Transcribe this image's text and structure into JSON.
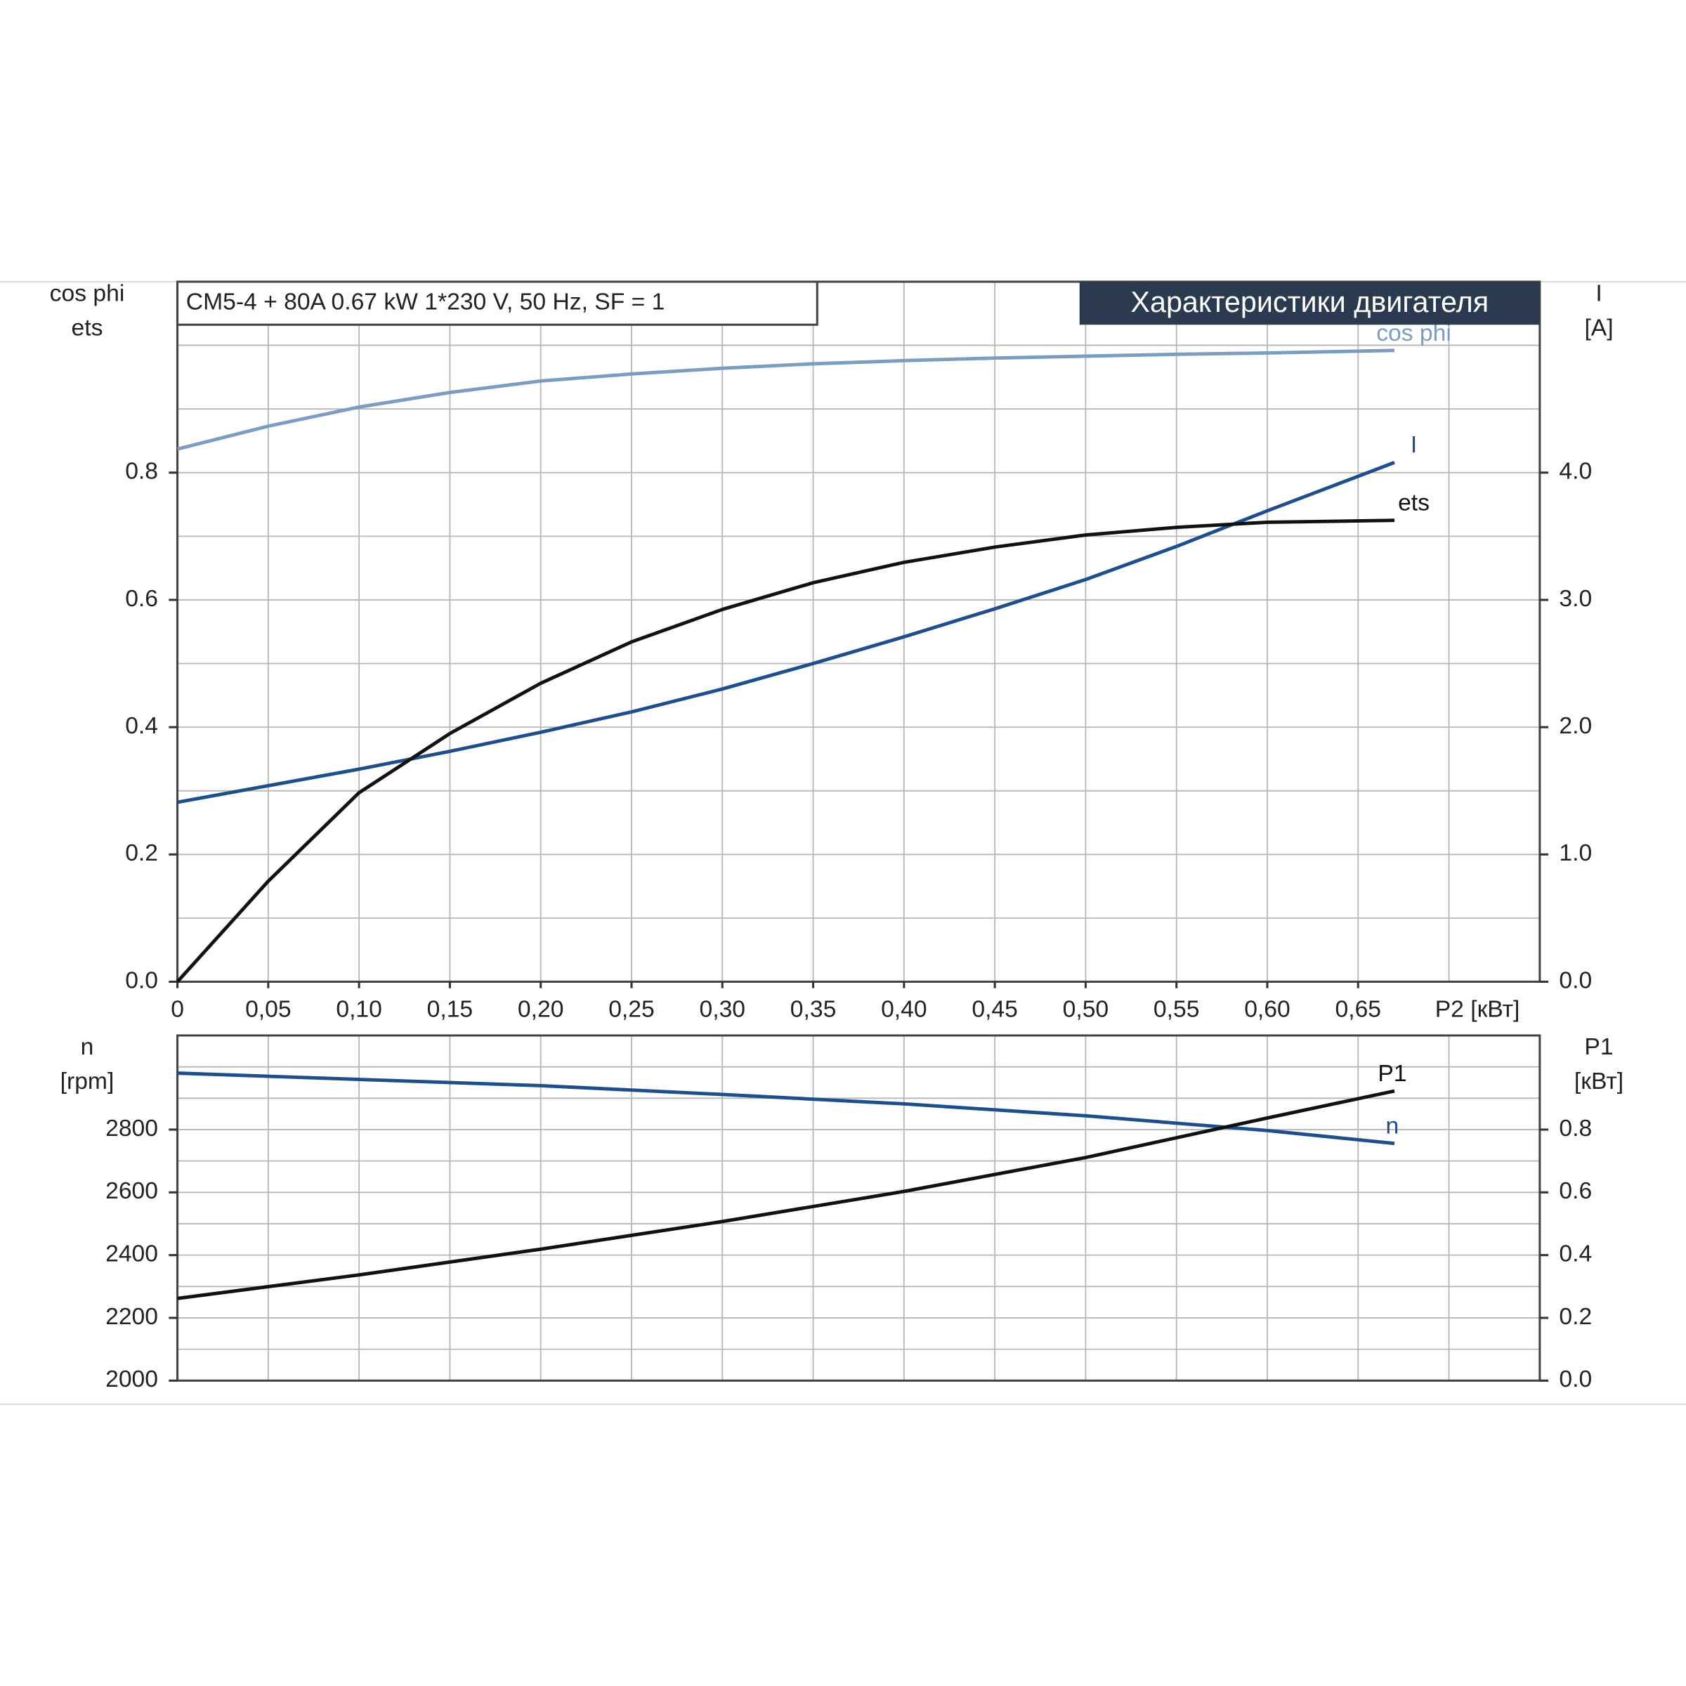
{
  "chart_data": [
    {
      "type": "line",
      "title": "Характеристики двигателя",
      "subtitle": "CM5-4 + 80A   0.67 kW   1*230 V, 50 Hz, SF = 1",
      "xlabel": "P2 [кВт]",
      "ylabel": [
        "cos phi",
        "ets"
      ],
      "y2label": [
        "I",
        "[A]"
      ],
      "xlim": [
        0,
        0.75
      ],
      "xticks": [
        0,
        {
          "value": 0.05,
          "label": "0,05"
        },
        {
          "value": 0.1,
          "label": "0,10"
        },
        {
          "value": 0.15,
          "label": "0,15"
        },
        {
          "value": 0.2,
          "label": "0,20"
        },
        {
          "value": 0.25,
          "label": "0,25"
        },
        {
          "value": 0.3,
          "label": "0,30"
        },
        {
          "value": 0.35,
          "label": "0,35"
        },
        {
          "value": 0.4,
          "label": "0,40"
        },
        {
          "value": 0.45,
          "label": "0,45"
        },
        {
          "value": 0.5,
          "label": "0,50"
        },
        {
          "value": 0.55,
          "label": "0,55"
        },
        {
          "value": 0.6,
          "label": "0,60"
        },
        {
          "value": 0.65,
          "label": "0,65"
        }
      ],
      "xgrid": [
        0.05,
        0.1,
        0.15,
        0.2,
        0.25,
        0.3,
        0.35,
        0.4,
        0.45,
        0.5,
        0.55,
        0.6,
        0.65,
        0.7
      ],
      "ylim": [
        0,
        1.1
      ],
      "yticks": [
        {
          "value": 0,
          "label": "0.0"
        },
        0.2,
        0.4,
        0.6,
        0.8
      ],
      "ygrid": [
        0.1,
        0.2,
        0.3,
        0.4,
        0.5,
        0.6,
        0.7,
        0.8,
        0.9,
        1.0
      ],
      "y2lim": [
        0,
        5.5
      ],
      "y2ticks": [
        {
          "value": 0,
          "label": "0.0"
        },
        {
          "value": 1,
          "label": "1.0"
        },
        {
          "value": 2,
          "label": "2.0"
        },
        {
          "value": 3,
          "label": "3.0"
        },
        {
          "value": 4,
          "label": "4.0"
        }
      ],
      "grid": true,
      "x": [
        0,
        0.05,
        0.1,
        0.15,
        0.2,
        0.25,
        0.3,
        0.35,
        0.4,
        0.45,
        0.5,
        0.55,
        0.6,
        0.67
      ],
      "series": [
        {
          "name": "cos phi",
          "color": "#7b9dc2",
          "values": [
            0.837,
            0.873,
            0.903,
            0.926,
            0.944,
            0.955,
            0.964,
            0.971,
            0.976,
            0.98,
            0.983,
            0.986,
            0.988,
            0.992
          ]
        },
        {
          "name": "I",
          "color": "#1f4e8c",
          "axis": "y2",
          "values": [
            1.41,
            1.54,
            1.67,
            1.81,
            1.96,
            2.12,
            2.3,
            2.5,
            2.71,
            2.93,
            3.16,
            3.42,
            3.7,
            4.08
          ]
        },
        {
          "name": "ets",
          "color": "#111111",
          "values": [
            0,
            0.158,
            0.297,
            0.39,
            0.469,
            0.534,
            0.585,
            0.627,
            0.659,
            0.683,
            0.702,
            0.714,
            0.722,
            0.725
          ]
        }
      ]
    },
    {
      "type": "line",
      "ylabel": [
        "n",
        "[rpm]"
      ],
      "y2label": [
        "P1",
        "[кВт]"
      ],
      "xlim": [
        0,
        0.75
      ],
      "xgrid": [
        0.05,
        0.1,
        0.15,
        0.2,
        0.25,
        0.3,
        0.35,
        0.4,
        0.45,
        0.5,
        0.55,
        0.6,
        0.65,
        0.7
      ],
      "ylim": [
        2000,
        3100
      ],
      "yticks": [
        2000,
        2200,
        2400,
        2600,
        2800
      ],
      "ygrid": [
        2100,
        2200,
        2300,
        2400,
        2500,
        2600,
        2700,
        2800,
        2900,
        3000
      ],
      "y2lim": [
        0,
        1.1
      ],
      "y2ticks": [
        {
          "value": 0,
          "label": "0.0"
        },
        0.2,
        0.4,
        0.6,
        0.8
      ],
      "grid": true,
      "x": [
        0,
        0.1,
        0.2,
        0.3,
        0.4,
        0.5,
        0.6,
        0.67
      ],
      "series": [
        {
          "name": "n",
          "color": "#1f4e8c",
          "values": [
            2980,
            2960,
            2940,
            2912,
            2882,
            2844,
            2797,
            2756
          ]
        },
        {
          "name": "P1",
          "color": "#111111",
          "axis": "y2",
          "values": [
            0.262,
            0.337,
            0.419,
            0.507,
            0.603,
            0.711,
            0.837,
            0.923
          ]
        }
      ]
    }
  ]
}
